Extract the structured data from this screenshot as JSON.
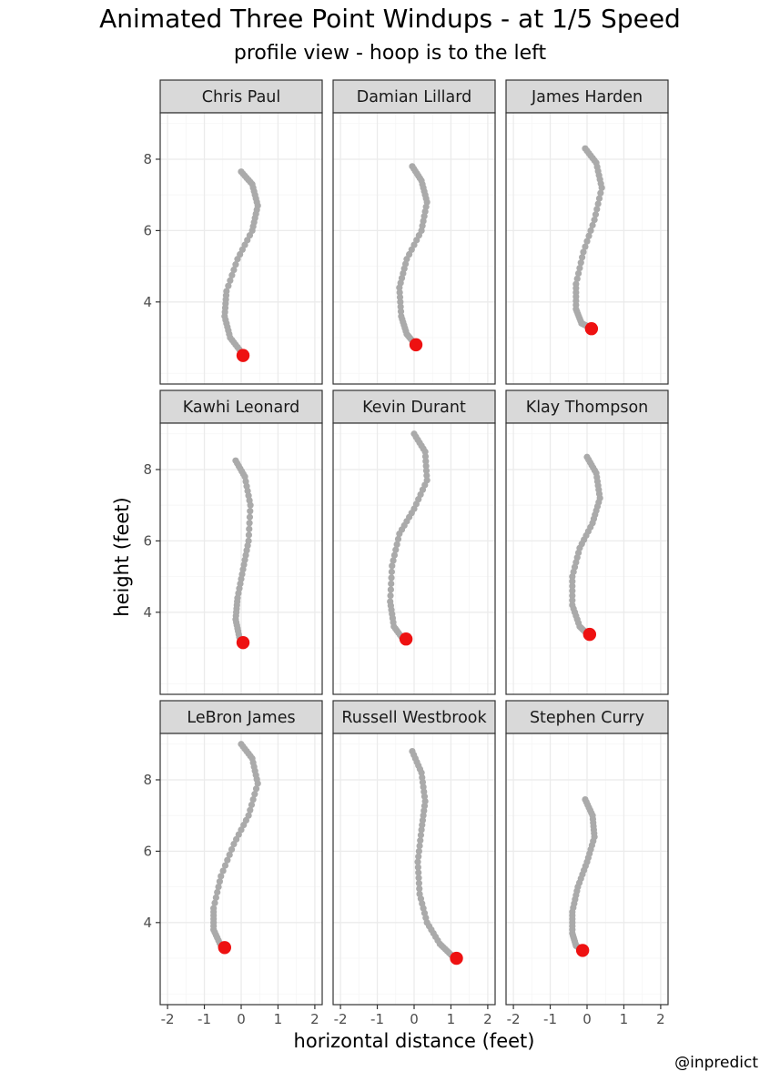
{
  "title": "Animated Three Point Windups - at 1/5 Speed",
  "subtitle": "profile view - hoop is to the left",
  "caption": "@inpredict",
  "colors": {
    "trail": "#aaaaaa",
    "release": "#ee1111",
    "strip_fill": "#d9d9d9",
    "panel_border": "#333333",
    "grid_major": "#ebebeb",
    "grid_minor": "#f5f5f5"
  },
  "chart_data": {
    "type": "scatter",
    "facet": "small-multiples 3x3",
    "xlabel": "horizontal distance (feet)",
    "ylabel": "height (feet)",
    "xlim": [
      -2.2,
      2.2
    ],
    "ylim": [
      1.7,
      9.3
    ],
    "x_ticks": [
      -2,
      -1,
      0,
      1,
      2
    ],
    "y_ticks": [
      4,
      6,
      8
    ],
    "grid": true,
    "panels": [
      {
        "name": "Chris Paul",
        "trail": [
          [
            0.0,
            7.65
          ],
          [
            0.3,
            7.3
          ],
          [
            0.45,
            6.7
          ],
          [
            0.3,
            6.0
          ],
          [
            -0.1,
            5.2
          ],
          [
            -0.4,
            4.3
          ],
          [
            -0.45,
            3.6
          ],
          [
            -0.3,
            3.0
          ],
          [
            0.0,
            2.6
          ]
        ],
        "release": [
          0.05,
          2.5
        ]
      },
      {
        "name": "Damian Lillard",
        "trail": [
          [
            -0.05,
            7.8
          ],
          [
            0.2,
            7.4
          ],
          [
            0.35,
            6.8
          ],
          [
            0.2,
            6.0
          ],
          [
            -0.2,
            5.2
          ],
          [
            -0.4,
            4.4
          ],
          [
            -0.35,
            3.6
          ],
          [
            -0.2,
            3.1
          ],
          [
            0.0,
            2.85
          ]
        ],
        "release": [
          0.05,
          2.8
        ]
      },
      {
        "name": "James Harden",
        "trail": [
          [
            -0.05,
            8.3
          ],
          [
            0.25,
            7.9
          ],
          [
            0.4,
            7.2
          ],
          [
            0.2,
            6.3
          ],
          [
            -0.1,
            5.4
          ],
          [
            -0.3,
            4.5
          ],
          [
            -0.3,
            3.8
          ],
          [
            -0.15,
            3.4
          ],
          [
            0.05,
            3.3
          ]
        ],
        "release": [
          0.12,
          3.25
        ]
      },
      {
        "name": "Kawhi Leonard",
        "trail": [
          [
            -0.15,
            8.25
          ],
          [
            0.1,
            7.8
          ],
          [
            0.25,
            7.0
          ],
          [
            0.2,
            6.0
          ],
          [
            0.05,
            5.2
          ],
          [
            -0.1,
            4.4
          ],
          [
            -0.15,
            3.8
          ],
          [
            -0.05,
            3.3
          ],
          [
            0.05,
            3.15
          ]
        ],
        "release": [
          0.05,
          3.15
        ]
      },
      {
        "name": "Kevin Durant",
        "trail": [
          [
            0.0,
            9.0
          ],
          [
            0.3,
            8.5
          ],
          [
            0.35,
            7.7
          ],
          [
            0.0,
            6.9
          ],
          [
            -0.4,
            6.2
          ],
          [
            -0.6,
            5.3
          ],
          [
            -0.65,
            4.3
          ],
          [
            -0.55,
            3.6
          ],
          [
            -0.3,
            3.25
          ]
        ],
        "release": [
          -0.22,
          3.25
        ]
      },
      {
        "name": "Klay Thompson",
        "trail": [
          [
            0.0,
            8.35
          ],
          [
            0.25,
            7.9
          ],
          [
            0.35,
            7.2
          ],
          [
            0.15,
            6.5
          ],
          [
            -0.2,
            5.8
          ],
          [
            -0.4,
            5.0
          ],
          [
            -0.4,
            4.2
          ],
          [
            -0.2,
            3.6
          ],
          [
            0.0,
            3.4
          ]
        ],
        "release": [
          0.07,
          3.38
        ]
      },
      {
        "name": "LeBron James",
        "trail": [
          [
            0.0,
            9.0
          ],
          [
            0.3,
            8.6
          ],
          [
            0.45,
            7.9
          ],
          [
            0.2,
            7.0
          ],
          [
            -0.2,
            6.2
          ],
          [
            -0.55,
            5.3
          ],
          [
            -0.75,
            4.4
          ],
          [
            -0.75,
            3.8
          ],
          [
            -0.55,
            3.35
          ]
        ],
        "release": [
          -0.45,
          3.3
        ]
      },
      {
        "name": "Russell Westbrook",
        "trail": [
          [
            -0.05,
            8.8
          ],
          [
            0.2,
            8.2
          ],
          [
            0.3,
            7.4
          ],
          [
            0.2,
            6.6
          ],
          [
            0.1,
            5.7
          ],
          [
            0.15,
            4.8
          ],
          [
            0.35,
            4.0
          ],
          [
            0.7,
            3.4
          ],
          [
            1.0,
            3.1
          ]
        ],
        "release": [
          1.15,
          3.0
        ]
      },
      {
        "name": "Stephen Curry",
        "trail": [
          [
            -0.05,
            7.45
          ],
          [
            0.15,
            7.0
          ],
          [
            0.2,
            6.4
          ],
          [
            0.0,
            5.7
          ],
          [
            -0.25,
            5.0
          ],
          [
            -0.4,
            4.3
          ],
          [
            -0.4,
            3.7
          ],
          [
            -0.3,
            3.35
          ],
          [
            -0.15,
            3.25
          ]
        ],
        "release": [
          -0.12,
          3.22
        ]
      }
    ]
  }
}
